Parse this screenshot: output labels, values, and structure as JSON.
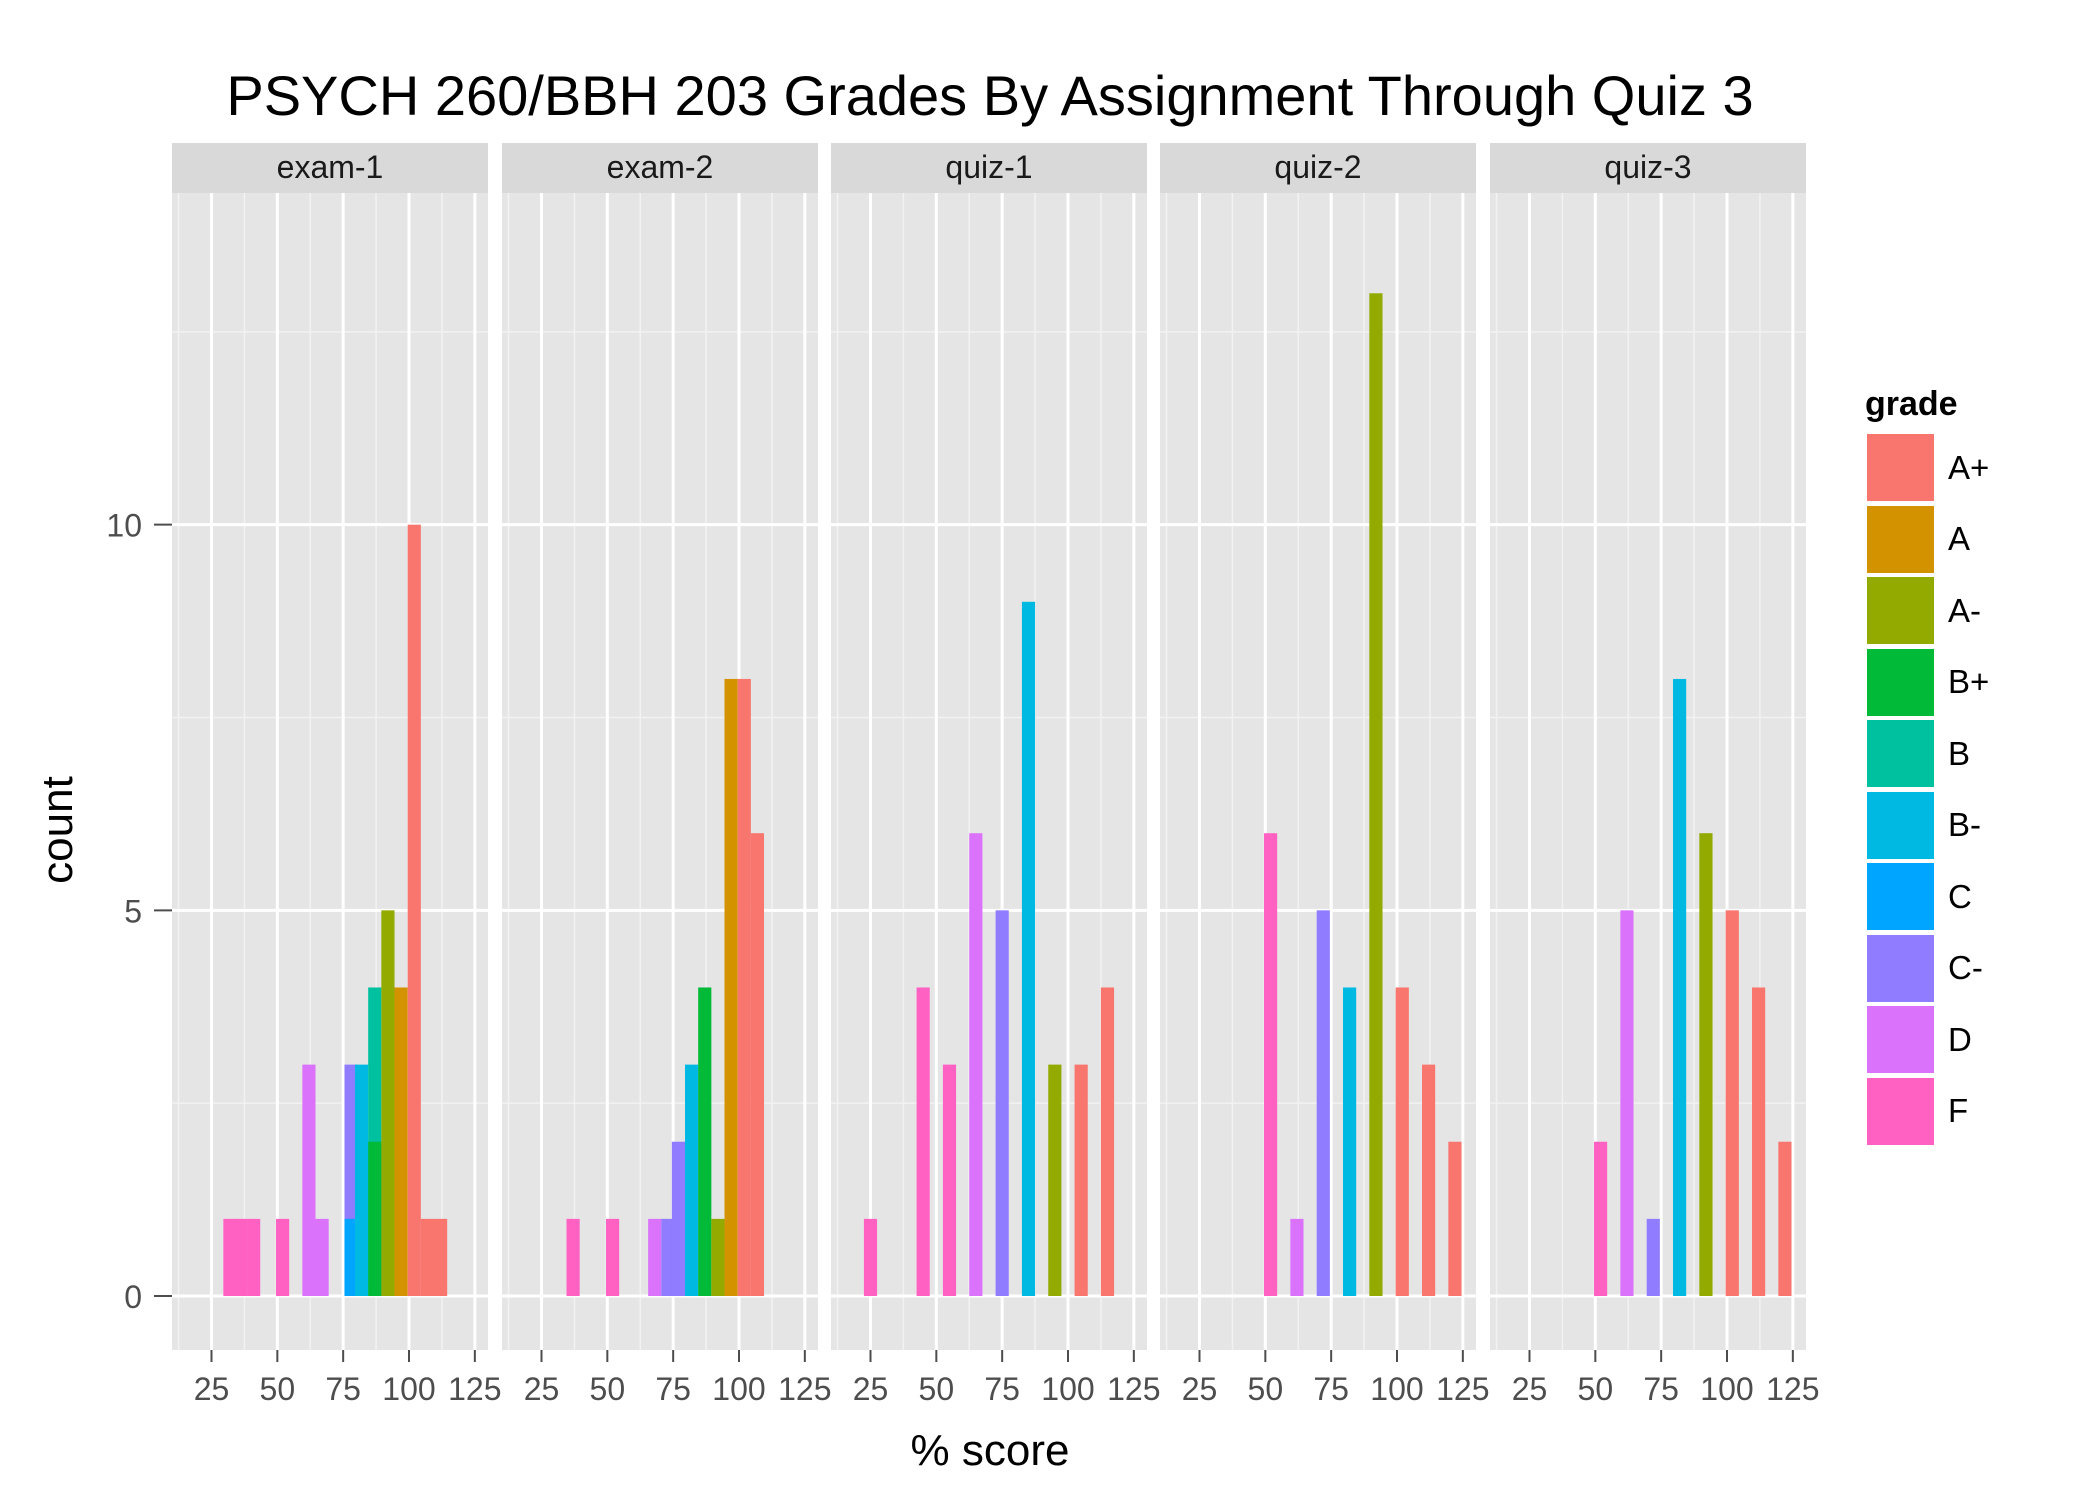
{
  "chart_data": {
    "type": "bar",
    "title": "PSYCH 260/BBH 203 Grades By Assignment Through Quiz 3",
    "xlabel": "% score",
    "ylabel": "count",
    "xlim": [
      10,
      130
    ],
    "ylim": [
      -0.7,
      14.3
    ],
    "x_ticks": [
      25,
      50,
      75,
      100,
      125
    ],
    "x_tick_labels": [
      "25",
      "50",
      "75",
      "100",
      "125"
    ],
    "y_ticks": [
      0,
      5,
      10
    ],
    "y_tick_labels": [
      "0",
      "5",
      "10"
    ],
    "grid": true,
    "legend": {
      "title": "grade",
      "placement": "right",
      "entries": [
        {
          "label": "A+",
          "color": "#F8766D"
        },
        {
          "label": "A",
          "color": "#D39200"
        },
        {
          "label": "A-",
          "color": "#93AA00"
        },
        {
          "label": "B+",
          "color": "#00BA38"
        },
        {
          "label": "B",
          "color": "#00C19F"
        },
        {
          "label": "B-",
          "color": "#00B9E3"
        },
        {
          "label": "C",
          "color": "#00A5FF"
        },
        {
          "label": "C-",
          "color": "#8F7CFF"
        },
        {
          "label": "D",
          "color": "#DB72FB"
        },
        {
          "label": "F",
          "color": "#FF61C3"
        }
      ]
    },
    "panels": [
      {
        "name": "exam-1",
        "bar_width": 5,
        "bars": [
          {
            "x": 32,
            "count": 1,
            "grade": "F"
          },
          {
            "x": 36,
            "count": 1,
            "grade": "F"
          },
          {
            "x": 41,
            "count": 1,
            "grade": "F"
          },
          {
            "x": 52,
            "count": 1,
            "grade": "F"
          },
          {
            "x": 62,
            "count": 3,
            "grade": "D"
          },
          {
            "x": 67,
            "count": 1,
            "grade": "D"
          },
          {
            "x": 78,
            "count": 3,
            "grade": "C-"
          },
          {
            "x": 78,
            "count": 1,
            "grade": "C"
          },
          {
            "x": 82,
            "count": 3,
            "grade": "B-"
          },
          {
            "x": 87,
            "count": 4,
            "grade": "B"
          },
          {
            "x": 87,
            "count": 2,
            "grade": "B+"
          },
          {
            "x": 92,
            "count": 5,
            "grade": "A-"
          },
          {
            "x": 97,
            "count": 4,
            "grade": "A"
          },
          {
            "x": 102,
            "count": 10,
            "grade": "A+"
          },
          {
            "x": 107,
            "count": 1,
            "grade": "A+"
          },
          {
            "x": 112,
            "count": 1,
            "grade": "A+"
          }
        ]
      },
      {
        "name": "exam-2",
        "bar_width": 5,
        "bars": [
          {
            "x": 37,
            "count": 1,
            "grade": "F"
          },
          {
            "x": 52,
            "count": 1,
            "grade": "F"
          },
          {
            "x": 68,
            "count": 1,
            "grade": "D"
          },
          {
            "x": 73,
            "count": 1,
            "grade": "C-"
          },
          {
            "x": 77,
            "count": 2,
            "grade": "C-"
          },
          {
            "x": 82,
            "count": 3,
            "grade": "B-"
          },
          {
            "x": 87,
            "count": 4,
            "grade": "B+"
          },
          {
            "x": 92,
            "count": 1,
            "grade": "A-"
          },
          {
            "x": 97,
            "count": 8,
            "grade": "A"
          },
          {
            "x": 102,
            "count": 8,
            "grade": "A+"
          },
          {
            "x": 107,
            "count": 6,
            "grade": "A+"
          }
        ]
      },
      {
        "name": "quiz-1",
        "bar_width": 5,
        "bars": [
          {
            "x": 25,
            "count": 1,
            "grade": "F"
          },
          {
            "x": 45,
            "count": 4,
            "grade": "F"
          },
          {
            "x": 55,
            "count": 3,
            "grade": "F"
          },
          {
            "x": 65,
            "count": 6,
            "grade": "D"
          },
          {
            "x": 75,
            "count": 5,
            "grade": "C-"
          },
          {
            "x": 85,
            "count": 9,
            "grade": "B-"
          },
          {
            "x": 95,
            "count": 3,
            "grade": "A-"
          },
          {
            "x": 105,
            "count": 3,
            "grade": "A+"
          },
          {
            "x": 115,
            "count": 4,
            "grade": "A+"
          }
        ]
      },
      {
        "name": "quiz-2",
        "bar_width": 5,
        "bars": [
          {
            "x": 52,
            "count": 6,
            "grade": "F"
          },
          {
            "x": 62,
            "count": 1,
            "grade": "D"
          },
          {
            "x": 72,
            "count": 5,
            "grade": "C-"
          },
          {
            "x": 82,
            "count": 4,
            "grade": "B-"
          },
          {
            "x": 92,
            "count": 13,
            "grade": "A-"
          },
          {
            "x": 102,
            "count": 4,
            "grade": "A+"
          },
          {
            "x": 112,
            "count": 3,
            "grade": "A+"
          },
          {
            "x": 122,
            "count": 2,
            "grade": "A+"
          }
        ]
      },
      {
        "name": "quiz-3",
        "bar_width": 5,
        "bars": [
          {
            "x": 52,
            "count": 2,
            "grade": "F"
          },
          {
            "x": 62,
            "count": 5,
            "grade": "D"
          },
          {
            "x": 72,
            "count": 1,
            "grade": "C-"
          },
          {
            "x": 82,
            "count": 8,
            "grade": "B-"
          },
          {
            "x": 92,
            "count": 6,
            "grade": "A-"
          },
          {
            "x": 102,
            "count": 5,
            "grade": "A+"
          },
          {
            "x": 112,
            "count": 4,
            "grade": "A+"
          },
          {
            "x": 122,
            "count": 2,
            "grade": "A+"
          }
        ]
      }
    ]
  }
}
